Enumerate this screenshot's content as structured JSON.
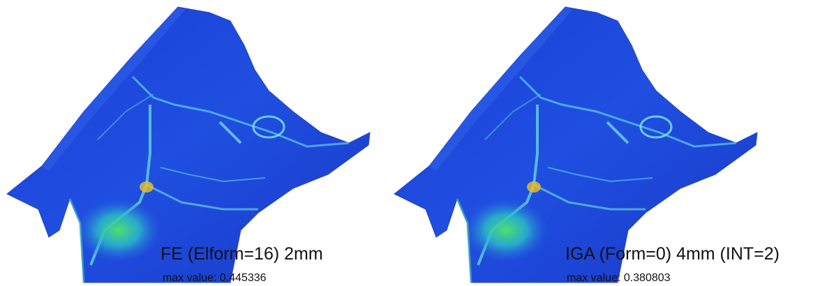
{
  "panels": [
    {
      "caption": "FE (Elform=16) 2mm",
      "note": "max value:  0.445336"
    },
    {
      "caption": "IGA (Form=0) 4mm (INT=2)",
      "note": "max value: 0.380803"
    }
  ]
}
